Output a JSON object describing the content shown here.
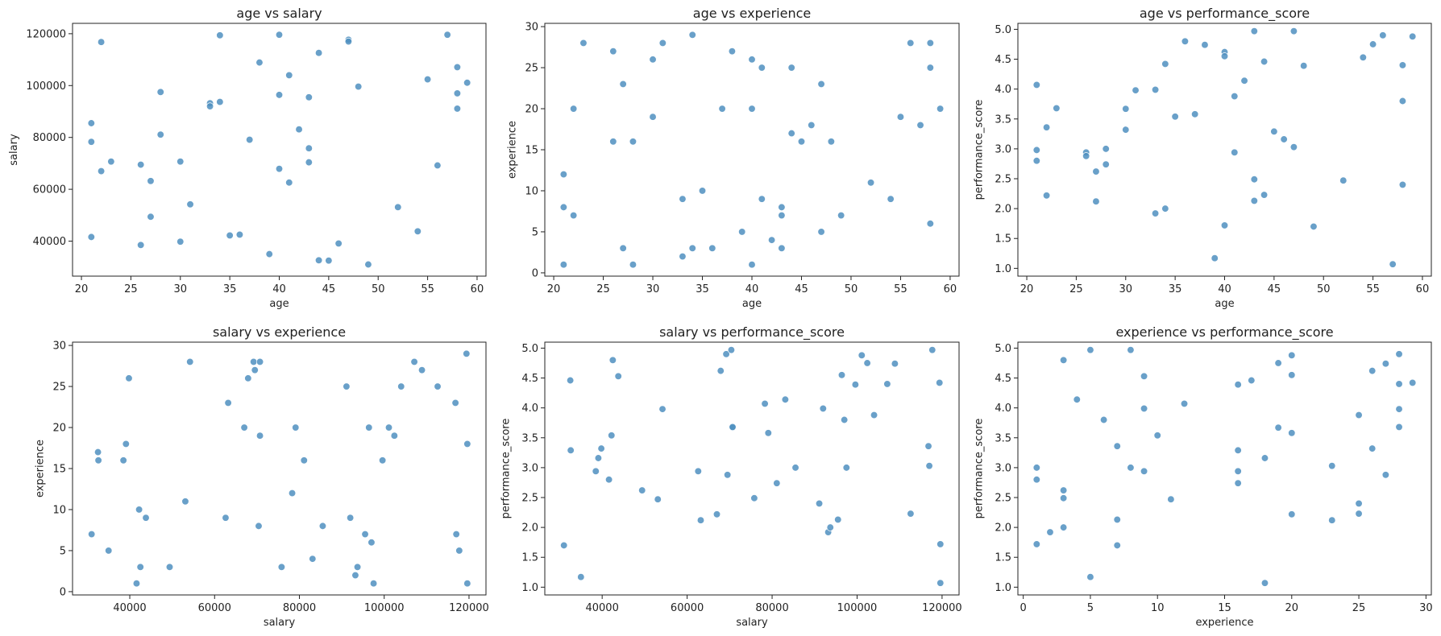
{
  "chart_data": [
    {
      "type": "scatter",
      "title": "age vs salary",
      "xlabel": "age",
      "ylabel": "salary",
      "xlim": [
        19.1,
        60.9
      ],
      "ylim": [
        26500,
        124000
      ],
      "xticks": [
        20,
        25,
        30,
        35,
        40,
        45,
        50,
        55,
        60
      ],
      "yticks": [
        40000,
        60000,
        80000,
        100000,
        120000
      ],
      "grid": false,
      "point_color": "#4f8fc0",
      "points": [
        [
          21,
          85500
        ],
        [
          21,
          78300
        ],
        [
          21,
          41600
        ],
        [
          22,
          116800
        ],
        [
          22,
          67000
        ],
        [
          23,
          70700
        ],
        [
          26,
          69500
        ],
        [
          26,
          38500
        ],
        [
          27,
          63200
        ],
        [
          27,
          49400
        ],
        [
          28,
          97500
        ],
        [
          28,
          81100
        ],
        [
          30,
          70700
        ],
        [
          30,
          39800
        ],
        [
          31,
          54200
        ],
        [
          33,
          93200
        ],
        [
          33,
          92000
        ],
        [
          34,
          119400
        ],
        [
          34,
          93700
        ],
        [
          35,
          42200
        ],
        [
          36,
          42500
        ],
        [
          37,
          79100
        ],
        [
          38,
          108900
        ],
        [
          39,
          35000
        ],
        [
          40,
          119600
        ],
        [
          40,
          96400
        ],
        [
          40,
          67900
        ],
        [
          41,
          104000
        ],
        [
          41,
          62600
        ],
        [
          42,
          83100
        ],
        [
          43,
          95500
        ],
        [
          43,
          75800
        ],
        [
          43,
          70400
        ],
        [
          44,
          112600
        ],
        [
          44,
          32600
        ],
        [
          45,
          32500
        ],
        [
          46,
          39100
        ],
        [
          47,
          117700
        ],
        [
          47,
          117000
        ],
        [
          48,
          99600
        ],
        [
          49,
          31000
        ],
        [
          52,
          53100
        ],
        [
          54,
          43800
        ],
        [
          55,
          102400
        ],
        [
          56,
          69200
        ],
        [
          57,
          119600
        ],
        [
          58,
          107100
        ],
        [
          58,
          97000
        ],
        [
          58,
          91100
        ],
        [
          59,
          101100
        ]
      ]
    },
    {
      "type": "scatter",
      "title": "age vs experience",
      "xlabel": "age",
      "ylabel": "experience",
      "xlim": [
        19.1,
        60.9
      ],
      "ylim": [
        -0.4,
        30.4
      ],
      "xticks": [
        20,
        25,
        30,
        35,
        40,
        45,
        50,
        55,
        60
      ],
      "yticks": [
        0,
        5,
        10,
        15,
        20,
        25,
        30
      ],
      "grid": false,
      "point_color": "#4f8fc0",
      "points": [
        [
          21,
          12
        ],
        [
          21,
          8
        ],
        [
          21,
          1
        ],
        [
          22,
          20
        ],
        [
          22,
          7
        ],
        [
          23,
          28
        ],
        [
          26,
          27
        ],
        [
          26,
          16
        ],
        [
          27,
          23
        ],
        [
          27,
          3
        ],
        [
          28,
          16
        ],
        [
          28,
          1
        ],
        [
          30,
          26
        ],
        [
          30,
          19
        ],
        [
          31,
          28
        ],
        [
          33,
          9
        ],
        [
          33,
          2
        ],
        [
          34,
          29
        ],
        [
          34,
          3
        ],
        [
          35,
          10
        ],
        [
          36,
          3
        ],
        [
          37,
          20
        ],
        [
          38,
          27
        ],
        [
          39,
          5
        ],
        [
          40,
          26
        ],
        [
          40,
          20
        ],
        [
          40,
          1
        ],
        [
          41,
          25
        ],
        [
          41,
          9
        ],
        [
          42,
          4
        ],
        [
          43,
          8
        ],
        [
          43,
          7
        ],
        [
          43,
          3
        ],
        [
          44,
          25
        ],
        [
          44,
          17
        ],
        [
          45,
          16
        ],
        [
          46,
          18
        ],
        [
          47,
          23
        ],
        [
          47,
          5
        ],
        [
          48,
          16
        ],
        [
          49,
          7
        ],
        [
          52,
          11
        ],
        [
          54,
          9
        ],
        [
          55,
          19
        ],
        [
          56,
          28
        ],
        [
          57,
          18
        ],
        [
          58,
          28
        ],
        [
          58,
          25
        ],
        [
          58,
          6
        ],
        [
          59,
          20
        ]
      ]
    },
    {
      "type": "scatter",
      "title": "age vs performance_score",
      "xlabel": "age",
      "ylabel": "performance_score",
      "xlim": [
        19.1,
        60.9
      ],
      "ylim": [
        0.87,
        5.1
      ],
      "xticks": [
        20,
        25,
        30,
        35,
        40,
        45,
        50,
        55,
        60
      ],
      "yticks": [
        1.0,
        1.5,
        2.0,
        2.5,
        3.0,
        3.5,
        4.0,
        4.5,
        5.0
      ],
      "grid": false,
      "point_color": "#4f8fc0",
      "points": [
        [
          21,
          4.07
        ],
        [
          21,
          2.98
        ],
        [
          21,
          2.8
        ],
        [
          22,
          3.36
        ],
        [
          22,
          2.22
        ],
        [
          23,
          3.68
        ],
        [
          26,
          2.94
        ],
        [
          26,
          2.88
        ],
        [
          27,
          2.62
        ],
        [
          27,
          2.12
        ],
        [
          28,
          3.0
        ],
        [
          28,
          2.74
        ],
        [
          30,
          3.67
        ],
        [
          30,
          3.32
        ],
        [
          31,
          3.98
        ],
        [
          33,
          3.99
        ],
        [
          33,
          1.92
        ],
        [
          34,
          4.42
        ],
        [
          34,
          2.0
        ],
        [
          35,
          3.54
        ],
        [
          36,
          4.8
        ],
        [
          37,
          3.58
        ],
        [
          38,
          4.74
        ],
        [
          39,
          1.17
        ],
        [
          40,
          4.62
        ],
        [
          40,
          4.55
        ],
        [
          40,
          1.72
        ],
        [
          41,
          3.88
        ],
        [
          41,
          2.94
        ],
        [
          42,
          4.14
        ],
        [
          43,
          4.97
        ],
        [
          43,
          2.49
        ],
        [
          43,
          2.13
        ],
        [
          44,
          4.46
        ],
        [
          44,
          2.23
        ],
        [
          45,
          3.29
        ],
        [
          46,
          3.16
        ],
        [
          47,
          4.97
        ],
        [
          47,
          3.03
        ],
        [
          48,
          4.39
        ],
        [
          49,
          1.7
        ],
        [
          52,
          2.47
        ],
        [
          54,
          4.53
        ],
        [
          55,
          4.75
        ],
        [
          56,
          4.9
        ],
        [
          57,
          1.07
        ],
        [
          58,
          4.4
        ],
        [
          58,
          3.8
        ],
        [
          58,
          2.4
        ],
        [
          59,
          4.88
        ]
      ]
    },
    {
      "type": "scatter",
      "title": "salary vs experience",
      "xlabel": "salary",
      "ylabel": "experience",
      "xlim": [
        26500,
        124000
      ],
      "ylim": [
        -0.4,
        30.4
      ],
      "xticks": [
        40000,
        60000,
        80000,
        100000,
        120000
      ],
      "yticks": [
        0,
        5,
        10,
        15,
        20,
        25,
        30
      ],
      "grid": false,
      "point_color": "#4f8fc0",
      "points": [
        [
          31000,
          7
        ],
        [
          32500,
          17
        ],
        [
          32600,
          16
        ],
        [
          35000,
          5
        ],
        [
          38500,
          16
        ],
        [
          39100,
          18
        ],
        [
          39800,
          26
        ],
        [
          41600,
          1
        ],
        [
          42200,
          10
        ],
        [
          42500,
          3
        ],
        [
          43800,
          9
        ],
        [
          49400,
          3
        ],
        [
          53100,
          11
        ],
        [
          54200,
          28
        ],
        [
          62600,
          9
        ],
        [
          63200,
          23
        ],
        [
          67000,
          20
        ],
        [
          67900,
          26
        ],
        [
          69200,
          28
        ],
        [
          69500,
          27
        ],
        [
          70400,
          8
        ],
        [
          70700,
          19
        ],
        [
          70700,
          28
        ],
        [
          75800,
          3
        ],
        [
          78300,
          12
        ],
        [
          79100,
          20
        ],
        [
          81100,
          16
        ],
        [
          83100,
          4
        ],
        [
          85500,
          8
        ],
        [
          91100,
          25
        ],
        [
          92000,
          9
        ],
        [
          93200,
          2
        ],
        [
          93700,
          3
        ],
        [
          95500,
          7
        ],
        [
          96400,
          20
        ],
        [
          97000,
          6
        ],
        [
          97500,
          1
        ],
        [
          99600,
          16
        ],
        [
          101100,
          20
        ],
        [
          102400,
          19
        ],
        [
          104000,
          25
        ],
        [
          107100,
          28
        ],
        [
          108900,
          27
        ],
        [
          112600,
          25
        ],
        [
          116800,
          23
        ],
        [
          117000,
          7
        ],
        [
          117700,
          5
        ],
        [
          119400,
          29
        ],
        [
          119600,
          18
        ],
        [
          119600,
          1
        ]
      ]
    },
    {
      "type": "scatter",
      "title": "salary vs performance_score",
      "xlabel": "salary",
      "ylabel": "performance_score",
      "xlim": [
        26500,
        124000
      ],
      "ylim": [
        0.87,
        5.1
      ],
      "xticks": [
        40000,
        60000,
        80000,
        100000,
        120000
      ],
      "yticks": [
        1.0,
        1.5,
        2.0,
        2.5,
        3.0,
        3.5,
        4.0,
        4.5,
        5.0
      ],
      "grid": false,
      "point_color": "#4f8fc0",
      "points": [
        [
          31000,
          1.7
        ],
        [
          32500,
          4.46
        ],
        [
          32600,
          3.29
        ],
        [
          35000,
          1.17
        ],
        [
          38500,
          2.94
        ],
        [
          39100,
          3.16
        ],
        [
          39800,
          3.32
        ],
        [
          41600,
          2.8
        ],
        [
          42200,
          3.54
        ],
        [
          42500,
          4.8
        ],
        [
          43800,
          4.53
        ],
        [
          49400,
          2.62
        ],
        [
          53100,
          2.47
        ],
        [
          54200,
          3.98
        ],
        [
          62600,
          2.94
        ],
        [
          63200,
          2.12
        ],
        [
          67000,
          2.22
        ],
        [
          67900,
          4.62
        ],
        [
          69200,
          4.9
        ],
        [
          69500,
          2.88
        ],
        [
          70400,
          4.97
        ],
        [
          70700,
          3.67
        ],
        [
          70700,
          3.68
        ],
        [
          75800,
          2.49
        ],
        [
          78300,
          4.07
        ],
        [
          79100,
          3.58
        ],
        [
          81100,
          2.74
        ],
        [
          83100,
          4.14
        ],
        [
          85500,
          3.0
        ],
        [
          91100,
          2.4
        ],
        [
          92000,
          3.99
        ],
        [
          93200,
          1.92
        ],
        [
          93700,
          2.0
        ],
        [
          95500,
          2.13
        ],
        [
          96400,
          4.55
        ],
        [
          97000,
          3.8
        ],
        [
          97500,
          3.0
        ],
        [
          99600,
          4.39
        ],
        [
          101100,
          4.88
        ],
        [
          102400,
          4.75
        ],
        [
          104000,
          3.88
        ],
        [
          107100,
          4.4
        ],
        [
          108900,
          4.74
        ],
        [
          112600,
          2.23
        ],
        [
          116800,
          3.36
        ],
        [
          117000,
          3.03
        ],
        [
          117700,
          4.97
        ],
        [
          119400,
          4.42
        ],
        [
          119600,
          1.72
        ],
        [
          119600,
          1.07
        ]
      ]
    },
    {
      "type": "scatter",
      "title": "experience vs performance_score",
      "xlabel": "experience",
      "ylabel": "performance_score",
      "xlim": [
        -0.4,
        30.4
      ],
      "ylim": [
        0.87,
        5.1
      ],
      "xticks": [
        0,
        5,
        10,
        15,
        20,
        25,
        30
      ],
      "yticks": [
        1.0,
        1.5,
        2.0,
        2.5,
        3.0,
        3.5,
        4.0,
        4.5,
        5.0
      ],
      "grid": false,
      "point_color": "#4f8fc0",
      "points": [
        [
          1,
          3.0
        ],
        [
          1,
          2.8
        ],
        [
          1,
          1.72
        ],
        [
          2,
          1.92
        ],
        [
          3,
          4.8
        ],
        [
          3,
          2.62
        ],
        [
          3,
          2.49
        ],
        [
          3,
          2.0
        ],
        [
          4,
          4.14
        ],
        [
          5,
          4.97
        ],
        [
          5,
          1.17
        ],
        [
          6,
          3.8
        ],
        [
          7,
          3.36
        ],
        [
          7,
          2.13
        ],
        [
          7,
          1.7
        ],
        [
          8,
          4.97
        ],
        [
          8,
          3.0
        ],
        [
          9,
          4.53
        ],
        [
          9,
          3.99
        ],
        [
          9,
          2.94
        ],
        [
          10,
          3.54
        ],
        [
          11,
          2.47
        ],
        [
          12,
          4.07
        ],
        [
          16,
          4.39
        ],
        [
          16,
          3.29
        ],
        [
          16,
          2.94
        ],
        [
          16,
          2.74
        ],
        [
          17,
          4.46
        ],
        [
          18,
          3.16
        ],
        [
          18,
          1.07
        ],
        [
          19,
          4.75
        ],
        [
          19,
          3.67
        ],
        [
          20,
          4.88
        ],
        [
          20,
          4.55
        ],
        [
          20,
          3.58
        ],
        [
          20,
          2.22
        ],
        [
          23,
          3.03
        ],
        [
          23,
          2.12
        ],
        [
          25,
          3.88
        ],
        [
          25,
          2.4
        ],
        [
          25,
          2.23
        ],
        [
          26,
          4.62
        ],
        [
          26,
          3.32
        ],
        [
          27,
          4.74
        ],
        [
          27,
          2.88
        ],
        [
          28,
          4.9
        ],
        [
          28,
          4.4
        ],
        [
          28,
          3.98
        ],
        [
          28,
          3.68
        ],
        [
          29,
          4.42
        ]
      ]
    }
  ]
}
